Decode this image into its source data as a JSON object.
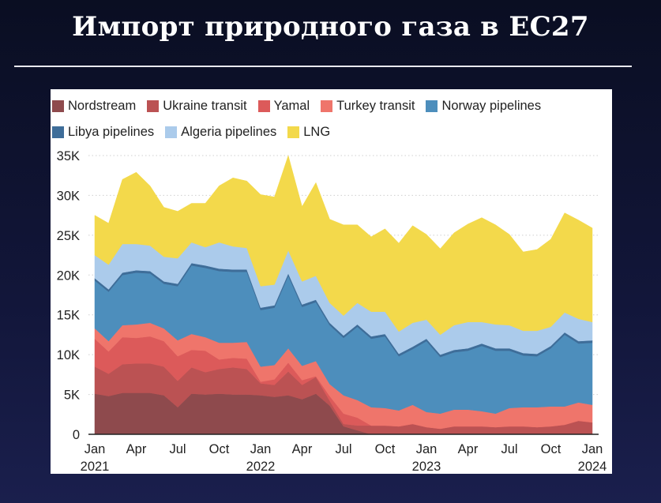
{
  "title": "Импорт природного газа в ЕС27",
  "chart_data": {
    "type": "area",
    "stacked": true,
    "title": "Импорт природного газа в ЕС27",
    "xlabel": "",
    "ylabel": "",
    "value_unit": "thousands",
    "ylim": [
      0,
      35
    ],
    "yticks": [
      {
        "v": 0,
        "label": "0"
      },
      {
        "v": 5,
        "label": "5K"
      },
      {
        "v": 10,
        "label": "10K"
      },
      {
        "v": 15,
        "label": "15K"
      },
      {
        "v": 20,
        "label": "20K"
      },
      {
        "v": 25,
        "label": "25K"
      },
      {
        "v": 30,
        "label": "30K"
      },
      {
        "v": 35,
        "label": "35K"
      }
    ],
    "xticks": [
      {
        "i": 0,
        "label": "Jan",
        "year": "2021"
      },
      {
        "i": 3,
        "label": "Apr",
        "year": ""
      },
      {
        "i": 6,
        "label": "Jul",
        "year": ""
      },
      {
        "i": 9,
        "label": "Oct",
        "year": ""
      },
      {
        "i": 12,
        "label": "Jan",
        "year": "2022"
      },
      {
        "i": 15,
        "label": "Apr",
        "year": ""
      },
      {
        "i": 18,
        "label": "Jul",
        "year": ""
      },
      {
        "i": 21,
        "label": "Oct",
        "year": ""
      },
      {
        "i": 24,
        "label": "Jan",
        "year": "2023"
      },
      {
        "i": 27,
        "label": "Apr",
        "year": ""
      },
      {
        "i": 30,
        "label": "Jul",
        "year": ""
      },
      {
        "i": 33,
        "label": "Oct",
        "year": ""
      },
      {
        "i": 36,
        "label": "Jan",
        "year": "2024"
      }
    ],
    "x_range": [
      "2021-01",
      "2024-01"
    ],
    "grid": true,
    "legend_position": "top",
    "series": [
      {
        "name": "Nordstream",
        "color": "#8e4a4d",
        "values": [
          5.1,
          4.8,
          5.2,
          5.2,
          5.2,
          4.9,
          3.4,
          5.1,
          5.0,
          5.1,
          5.0,
          5.0,
          4.9,
          4.7,
          4.9,
          4.4,
          5.1,
          3.6,
          1.0,
          0.5,
          0,
          0,
          0,
          0,
          0,
          0,
          0,
          0,
          0,
          0,
          0,
          0,
          0,
          0,
          0,
          0,
          0
        ]
      },
      {
        "name": "Ukraine transit",
        "color": "#bb5253",
        "values": [
          3.4,
          2.8,
          3.6,
          3.7,
          3.7,
          3.6,
          3.3,
          3.3,
          2.8,
          3.1,
          3.4,
          3.2,
          1.5,
          1.5,
          3.0,
          1.8,
          2.1,
          0.6,
          0.3,
          0.6,
          1.1,
          1.1,
          1.0,
          1.3,
          0.9,
          0.7,
          1.0,
          1.0,
          1.0,
          0.9,
          1.0,
          1.0,
          0.9,
          1.0,
          1.2,
          1.7,
          1.5
        ]
      },
      {
        "name": "Yamal",
        "color": "#dc5a5a",
        "values": [
          3.5,
          2.8,
          3.4,
          3.2,
          3.4,
          3.2,
          3.1,
          2.2,
          2.7,
          1.2,
          1.2,
          1.3,
          0.2,
          0.7,
          1.1,
          0.6,
          0.1,
          0.6,
          1.3,
          1.0,
          0,
          0,
          0,
          0,
          0,
          0,
          0,
          0,
          0,
          0,
          0,
          0,
          0,
          0,
          0,
          0,
          0
        ]
      },
      {
        "name": "Turkey transit",
        "color": "#ef756b",
        "values": [
          1.3,
          1.3,
          1.5,
          1.7,
          1.7,
          1.6,
          2.0,
          2.0,
          1.7,
          2.1,
          1.9,
          2.1,
          1.9,
          1.8,
          1.8,
          1.8,
          1.9,
          1.5,
          2.3,
          2.2,
          2.3,
          2.2,
          2.0,
          2.4,
          1.9,
          1.9,
          2.1,
          2.1,
          1.9,
          1.7,
          2.3,
          2.4,
          2.5,
          2.5,
          2.3,
          2.3,
          2.2
        ]
      },
      {
        "name": "Norway pipelines",
        "color": "#4d8ebc",
        "values": [
          6.0,
          6.2,
          6.3,
          6.5,
          6.2,
          5.6,
          6.8,
          8.6,
          8.7,
          9.0,
          8.9,
          8.8,
          7.1,
          7.2,
          9.1,
          7.4,
          7.4,
          7.4,
          7.2,
          9.2,
          8.6,
          9.0,
          6.8,
          7.0,
          8.9,
          7.1,
          7.2,
          7.4,
          8.2,
          7.9,
          7.2,
          6.5,
          6.4,
          7.3,
          9.0,
          7.4,
          7.8
        ]
      },
      {
        "name": "Libya pipelines",
        "color": "#3e6d99",
        "values": [
          0.3,
          0.3,
          0.3,
          0.3,
          0.3,
          0.3,
          0.3,
          0.3,
          0.3,
          0.3,
          0.3,
          0.3,
          0.3,
          0.3,
          0.3,
          0.3,
          0.3,
          0.3,
          0.3,
          0.3,
          0.3,
          0.3,
          0.3,
          0.3,
          0.3,
          0.3,
          0.3,
          0.3,
          0.3,
          0.3,
          0.3,
          0.3,
          0.3,
          0.3,
          0.3,
          0.3,
          0.3
        ]
      },
      {
        "name": "Algeria pipelines",
        "color": "#abcbeb",
        "values": [
          2.9,
          3.1,
          3.6,
          3.3,
          3.2,
          3.1,
          3.2,
          2.6,
          2.3,
          3.3,
          2.9,
          2.7,
          2.7,
          2.6,
          2.9,
          2.9,
          3.0,
          2.5,
          2.5,
          2.7,
          3.1,
          2.8,
          2.8,
          3.0,
          2.4,
          2.5,
          3.1,
          3.3,
          2.7,
          3.0,
          2.9,
          2.8,
          2.9,
          2.4,
          2.5,
          2.8,
          2.3
        ]
      },
      {
        "name": "LNG",
        "color": "#f3d94b",
        "values": [
          5.0,
          5.2,
          8.1,
          9.0,
          7.5,
          6.2,
          5.9,
          4.9,
          5.5,
          7.1,
          8.6,
          8.4,
          11.5,
          11.0,
          11.9,
          9.4,
          11.7,
          10.5,
          11.4,
          9.8,
          9.4,
          10.4,
          11.1,
          12.2,
          10.7,
          10.8,
          11.6,
          12.3,
          13.1,
          12.5,
          11.4,
          9.9,
          10.2,
          11.0,
          12.5,
          12.4,
          11.8
        ]
      }
    ]
  }
}
